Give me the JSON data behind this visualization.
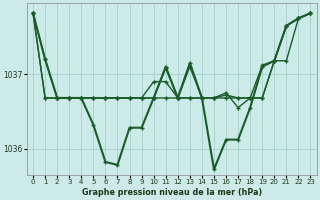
{
  "bg_color": "#cceae7",
  "grid_color": "#aad4d0",
  "line_color": "#1a5c2a",
  "title": "Graphe pression niveau de la mer (hPa)",
  "xlim": [
    -0.5,
    23.5
  ],
  "ylim": [
    1035.65,
    1037.95
  ],
  "yticks": [
    1036,
    1037
  ],
  "xticks": [
    0,
    1,
    2,
    3,
    4,
    5,
    6,
    7,
    8,
    9,
    10,
    11,
    12,
    13,
    14,
    15,
    16,
    17,
    18,
    19,
    20,
    21,
    22,
    23
  ],
  "series": [
    {
      "data": [
        1037.82,
        1037.2,
        1036.68,
        1036.68,
        1036.68,
        1036.68,
        1036.68,
        1036.68,
        1036.68,
        1036.68,
        1036.68,
        1036.68,
        1036.68,
        1036.68,
        1036.68,
        1036.68,
        1036.68,
        1036.68,
        1036.68,
        1036.68,
        1037.18,
        1037.18,
        1037.75,
        1037.82
      ],
      "lw": 1.0,
      "ms": 2.5
    },
    {
      "data": [
        1037.82,
        1036.68,
        1036.68,
        1036.68,
        1036.68,
        1036.68,
        1036.68,
        1036.68,
        1036.68,
        1036.68,
        1036.9,
        1036.9,
        1036.68,
        1036.68,
        1036.68,
        1036.68,
        1036.72,
        1036.68,
        1036.68,
        1036.68,
        1037.18,
        1037.65,
        1037.75,
        1037.82
      ],
      "lw": 1.0,
      "ms": 2.5
    },
    {
      "data": [
        1037.82,
        1036.68,
        1036.68,
        1036.68,
        1036.68,
        1036.68,
        1036.68,
        1036.68,
        1036.68,
        1036.68,
        1036.68,
        1037.08,
        1036.68,
        1037.1,
        1036.68,
        1036.68,
        1036.75,
        1036.55,
        1036.68,
        1037.12,
        1037.18,
        1037.65,
        1037.75,
        1037.82
      ],
      "lw": 1.0,
      "ms": 2.5
    },
    {
      "data": [
        1037.82,
        1037.2,
        1036.68,
        1036.68,
        1036.68,
        1036.32,
        1035.82,
        1035.78,
        1036.28,
        1036.28,
        1036.68,
        1037.1,
        1036.68,
        1037.15,
        1036.68,
        1035.72,
        1036.12,
        1036.12,
        1036.55,
        1037.1,
        1037.18,
        1037.65,
        1037.75,
        1037.82
      ],
      "lw": 1.5,
      "ms": 3.2
    }
  ]
}
